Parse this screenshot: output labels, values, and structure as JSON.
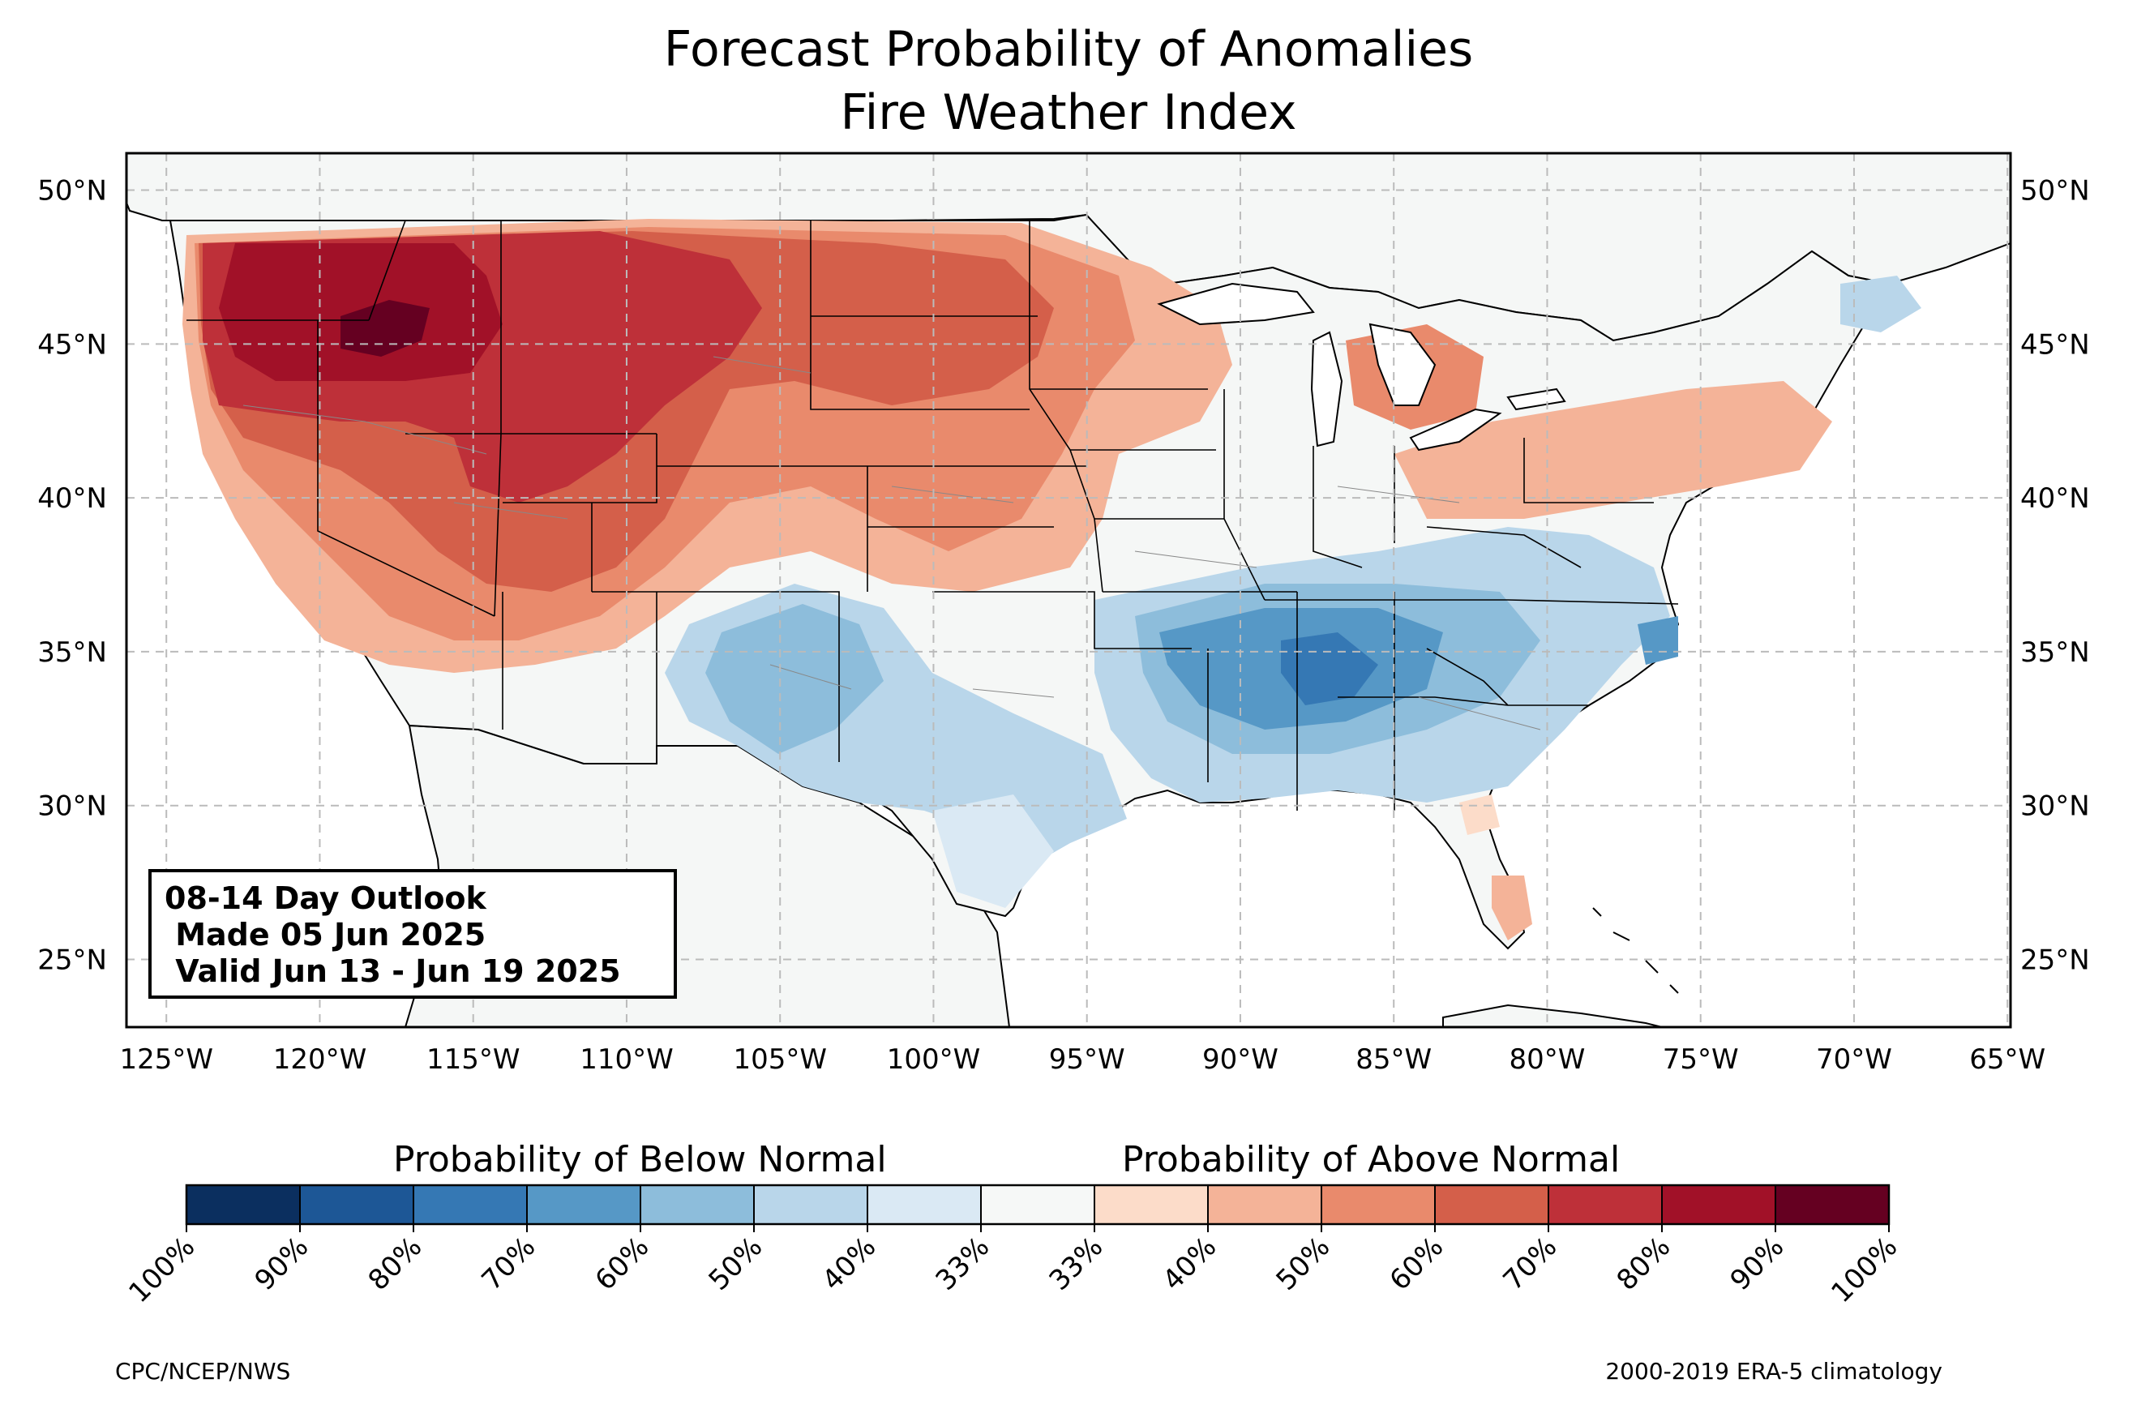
{
  "title": {
    "line1": "Forecast Probability of Anomalies",
    "line2": "Fire Weather Index"
  },
  "outlook": {
    "line1": "08-14 Day Outlook",
    "line2": " Made 05 Jun 2025",
    "line3": " Valid Jun 13 - Jun 19 2025"
  },
  "axes": {
    "lon_labels": [
      "125°W",
      "120°W",
      "115°W",
      "110°W",
      "105°W",
      "100°W",
      "95°W",
      "90°W",
      "85°W",
      "80°W",
      "75°W",
      "70°W",
      "65°W"
    ],
    "lat_labels": [
      "50°N",
      "45°N",
      "40°N",
      "35°N",
      "30°N",
      "25°N"
    ],
    "lon_range": [
      -126.3,
      -64.9
    ],
    "lat_range": [
      22.8,
      51.2
    ],
    "grid": true
  },
  "colorbar": {
    "below_label": "Probability of Below Normal",
    "above_label": "Probability of Above Normal",
    "tick_labels": [
      "100%",
      "90%",
      "80%",
      "70%",
      "60%",
      "50%",
      "40%",
      "33%",
      "33%",
      "40%",
      "50%",
      "60%",
      "70%",
      "80%",
      "90%",
      "100%"
    ],
    "colors": [
      "#0b2f5f",
      "#1d5796",
      "#3578b4",
      "#5698c6",
      "#8dbddb",
      "#b9d6ea",
      "#dae9f4",
      "#f6f8f7",
      "#fcdcc9",
      "#f4b398",
      "#e98a6c",
      "#d45f4a",
      "#be3039",
      "#a11128",
      "#650021"
    ]
  },
  "map": {
    "land_color": "#f5f7f6",
    "ocean_color": "#ffffff",
    "below_colors": [
      "#dae9f4",
      "#b9d6ea",
      "#8dbddb",
      "#5698c6",
      "#3578b4"
    ],
    "above_colors": [
      "#fcdcc9",
      "#f4b398",
      "#e98a6c",
      "#d45f4a",
      "#be3039",
      "#a11128",
      "#650021"
    ]
  },
  "footer": {
    "credit": "CPC/NCEP/NWS",
    "climatology": "2000-2019 ERA-5 climatology"
  }
}
